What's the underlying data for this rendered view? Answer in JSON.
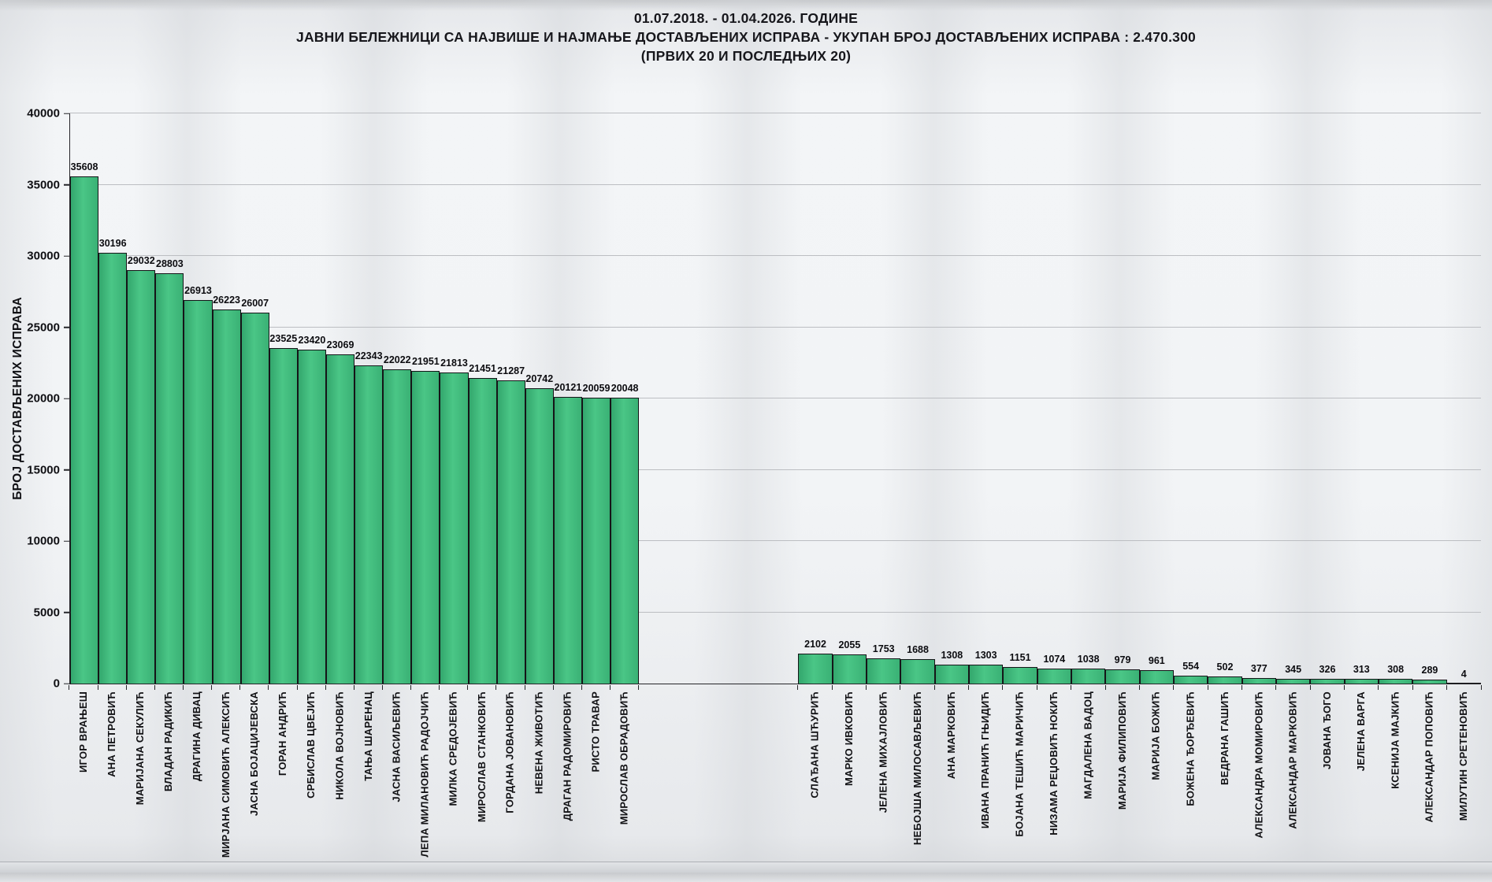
{
  "chart_data": {
    "type": "bar",
    "title_line1": "01.07.2018. - 01.04.2026. ГОДИНЕ",
    "title_line2": "ЈАВНИ БЕЛЕЖНИЦИ СА НАЈВИШЕ И НАЈМАЊЕ ДОСТАВЉЕНИХ ИСПРАВА - УКУПАН БРОЈ ДОСТАВЉЕНИХ ИСПРАВА : 2.470.300",
    "title_line3": "(ПРВИХ 20 И ПОСЛЕДЊИХ 20)",
    "total_documents": "2.470.300",
    "ylabel": "БРОЈ ДОСТАВЉЕНИХ ИСПРАВА",
    "ylim": [
      0,
      40000
    ],
    "yticks": [
      0,
      5000,
      10000,
      15000,
      20000,
      25000,
      30000,
      35000,
      40000
    ],
    "grid": "horizontal",
    "legend": "none",
    "colors": {
      "bar_fill": "#41c07f",
      "bar_border": "#151518",
      "gridline": "#bcbec2",
      "text": "#111114",
      "background": "#f2f4f6"
    },
    "groups": [
      {
        "name": "first-20",
        "bars": [
          {
            "label": "ИГОР ВРАЊЕШ",
            "value": 35608
          },
          {
            "label": "АНА ПЕТРОВИЋ",
            "value": 30196
          },
          {
            "label": "МАРИЈАНА СЕКУЛИЋ",
            "value": 29032
          },
          {
            "label": "ВЛАДАН РАДИКИЋ",
            "value": 28803
          },
          {
            "label": "ДРАГИНА ДИВАЦ",
            "value": 26913
          },
          {
            "label": "МИРЈАНА СИМОВИЋ АЛЕКСИЋ",
            "value": 26223
          },
          {
            "label": "ЈАСНА БОЈАЦИЈЕВСКА",
            "value": 26007
          },
          {
            "label": "ГОРАН АНДРИЋ",
            "value": 23525
          },
          {
            "label": "СРБИСЛАВ ЦВЕЈИЋ",
            "value": 23420
          },
          {
            "label": "НИКОЛА ВОЈНОВИЋ",
            "value": 23069
          },
          {
            "label": "ТАЊА ШАРЕНАЦ",
            "value": 22343
          },
          {
            "label": "ЈАСНА ВАСИЉЕВИЋ",
            "value": 22022
          },
          {
            "label": "ЛЕПА МИЛАНОВИЋ РАДОЈЧИЋ",
            "value": 21951
          },
          {
            "label": "МИЛКА СРЕДОЈЕВИЋ",
            "value": 21813
          },
          {
            "label": "МИРОСЛАВ СТАНКОВИЋ",
            "value": 21451
          },
          {
            "label": "ГОРДАНА ЈОВАНОВИЋ",
            "value": 21287
          },
          {
            "label": "НЕВЕНА ЖИВОТИЋ",
            "value": 20742
          },
          {
            "label": "ДРАГАН РАДОМИРОВИЋ",
            "value": 20121
          },
          {
            "label": "РИСТО ТРАВАР",
            "value": 20059
          },
          {
            "label": "МИРОСЛАВ ОБРАДОВИЋ",
            "value": 20048
          }
        ]
      },
      {
        "name": "last-20",
        "bars": [
          {
            "label": "СЛАЂАНА ШЋУРИЋ",
            "value": 2102
          },
          {
            "label": "МАРКО ИВКОВИЋ",
            "value": 2055
          },
          {
            "label": "ЈЕЛЕНА МИХАЈЛОВИЋ",
            "value": 1753
          },
          {
            "label": "НЕБОЈША МИЛОСАВЉЕВИЋ",
            "value": 1688
          },
          {
            "label": "АНА МАРКОВИЋ",
            "value": 1308
          },
          {
            "label": "ИВАНА ПРАНИЋ ГЊИДИЋ",
            "value": 1303
          },
          {
            "label": "БОЈАНА ТЕШИЋ МАРИЧИЋ",
            "value": 1151
          },
          {
            "label": "НИЗАМА РЕЏОВИЋ НОКИЋ",
            "value": 1074
          },
          {
            "label": "МАГДАЛЕНА ВАДОЦ",
            "value": 1038
          },
          {
            "label": "МАРИЈА ФИЛИПОВИЋ",
            "value": 979
          },
          {
            "label": "МАРИЈА БОЖИЋ",
            "value": 961
          },
          {
            "label": "БОЖЕНА ЂОРЂЕВИЋ",
            "value": 554
          },
          {
            "label": "ВЕДРАНА ГАШИЋ",
            "value": 502
          },
          {
            "label": "АЛЕКСАНДРА МОМИРОВИЋ",
            "value": 377
          },
          {
            "label": "АЛЕКСАНДАР МАРКОВИЋ",
            "value": 345
          },
          {
            "label": "ЈОВАНА ЂОГО",
            "value": 326
          },
          {
            "label": "ЈЕЛЕНА ВАРГА",
            "value": 313
          },
          {
            "label": "КСЕНИЈА МАЈКИЋ",
            "value": 308
          },
          {
            "label": "АЛЕКСАНДАР ПОПОВИЋ",
            "value": 289
          },
          {
            "label": "МИЛУТИН СРЕТЕНОВИЋ",
            "value": 4
          }
        ]
      }
    ]
  }
}
